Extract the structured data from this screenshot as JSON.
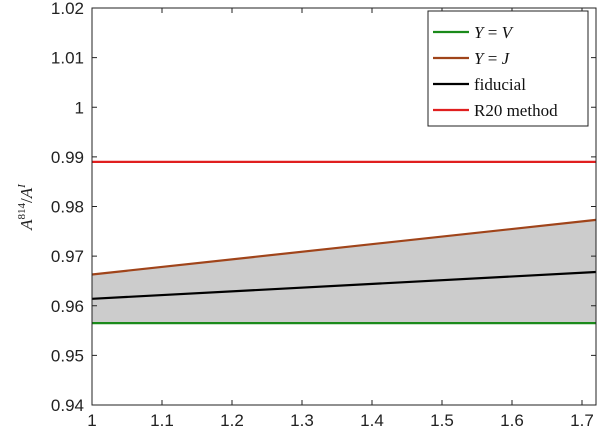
{
  "chart_data": {
    "type": "line",
    "title": "",
    "xlabel": "",
    "ylabel": "A^814/A^I",
    "xlim": [
      1,
      1.72
    ],
    "ylim": [
      0.94,
      1.02
    ],
    "x_ticks": [
      1,
      1.1,
      1.2,
      1.3,
      1.4,
      1.5,
      1.6,
      1.7
    ],
    "y_ticks": [
      0.94,
      0.95,
      0.96,
      0.97,
      0.98,
      0.99,
      1,
      1.01,
      1.02
    ],
    "x_tick_labels": [
      "1",
      "1.1",
      "1.2",
      "1.3",
      "1.4",
      "1.5",
      "1.6",
      "1.7"
    ],
    "y_tick_labels": [
      "0.94",
      "0.95",
      "0.96",
      "0.97",
      "0.98",
      "0.99",
      "1",
      "1.01",
      "1.02"
    ],
    "grid": false,
    "legend_position": "top-right",
    "band": {
      "between": [
        "Y = V",
        "Y = J"
      ],
      "color": "#cccccc"
    },
    "series": [
      {
        "name": "Y = V",
        "color": "#1a8a1a",
        "x": [
          1,
          1.72
        ],
        "y": [
          0.9565,
          0.9565
        ]
      },
      {
        "name": "Y = J",
        "color": "#a0441a",
        "x": [
          1,
          1.72
        ],
        "y": [
          0.9663,
          0.9773
        ]
      },
      {
        "name": "fiducial",
        "color": "#000000",
        "x": [
          1,
          1.72
        ],
        "y": [
          0.9614,
          0.9668
        ]
      },
      {
        "name": "R20 method",
        "color": "#e01f1f",
        "x": [
          1,
          1.72
        ],
        "y": [
          0.989,
          0.989
        ]
      }
    ]
  }
}
